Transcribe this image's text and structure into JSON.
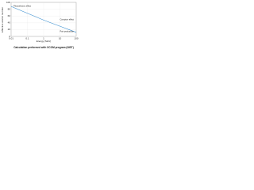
{
  "chart_data": {
    "type": "line",
    "xlabel": "Energy (MeV)",
    "ylabel": "Effective atomic number",
    "caption": "Calculation performed with XCOM program (NIST)",
    "x": [
      0.01,
      0.1,
      1,
      10,
      100
    ],
    "series": [
      {
        "name": "Effective atomic number",
        "color": "#3a8fd0",
        "values": [
          88,
          68,
          48,
          30,
          12
        ]
      }
    ],
    "xscale": "log",
    "xlim": [
      0.01,
      100
    ],
    "xticks": [
      0.01,
      0.1,
      1,
      10,
      100
    ],
    "ylim": [
      0,
      100
    ],
    "yticks": [
      0,
      20,
      40,
      60,
      80,
      100
    ],
    "grid": true,
    "annotations": [
      "Photoelectric effect",
      "Compton effect",
      "Pair production"
    ]
  }
}
